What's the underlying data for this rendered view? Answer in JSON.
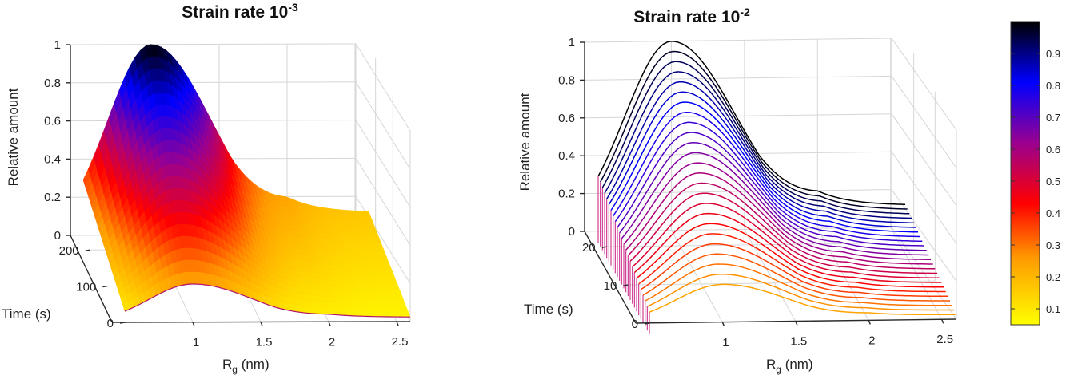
{
  "chart_data": [
    {
      "type": "surface",
      "title": "Strain rate 10",
      "title_exponent": "-3",
      "zlabel": "Relative amount",
      "ylabel": "Time (s)",
      "xlabel_main": "R",
      "xlabel_sub": "g",
      "xlabel_unit": " (nm)",
      "x_ticks": [
        "1",
        "1.5",
        "2",
        "2.5"
      ],
      "y_ticks": [
        "0",
        "100",
        "200"
      ],
      "z_ticks": [
        "0",
        "0.2",
        "0.4",
        "0.6",
        "0.8",
        "1"
      ],
      "xlim": [
        0.5,
        2.6
      ],
      "ylim": [
        0,
        240
      ],
      "zlim": [
        0,
        1
      ],
      "peak_rg": 1.0,
      "time_max": 240,
      "start_amount": 0.2,
      "peak_amount": 1.0,
      "tail_amount": 0.13,
      "colormap": "hot-to-blue (yellow → red → purple → blue → black)",
      "colors": [
        "#ffff00",
        "#ff9a00",
        "#ff0000",
        "#9a0090",
        "#0000ff",
        "#000000"
      ]
    },
    {
      "type": "line",
      "title": "Strain rate 10",
      "title_exponent": "-2",
      "zlabel": "Relative amount",
      "ylabel": "Time (s)",
      "xlabel_main": "R",
      "xlabel_sub": "g",
      "xlabel_unit": " (nm)",
      "x_ticks": [
        "1",
        "1.5",
        "2",
        "2.5"
      ],
      "y_ticks": [
        "0",
        "10",
        "20"
      ],
      "z_ticks": [
        "0",
        "0.2",
        "0.4",
        "0.6",
        "0.8",
        "1"
      ],
      "xlim": [
        0.5,
        2.6
      ],
      "ylim": [
        0,
        24
      ],
      "zlim": [
        0,
        1
      ],
      "peak_rg": 1.0,
      "time_max": 24,
      "curve_count": 25,
      "start_amount": 0.2,
      "peak_amount": 1.0,
      "tail_amount": 0.13,
      "colormap": "hot-to-blue (yellow → red → purple → blue → black)"
    }
  ],
  "colorbar": {
    "ticks": [
      "0.1",
      "0.2",
      "0.3",
      "0.4",
      "0.5",
      "0.6",
      "0.7",
      "0.8",
      "0.9"
    ],
    "tick_values": [
      0.1,
      0.2,
      0.3,
      0.4,
      0.5,
      0.6,
      0.7,
      0.8,
      0.9
    ],
    "range": [
      0.05,
      1.0
    ]
  }
}
